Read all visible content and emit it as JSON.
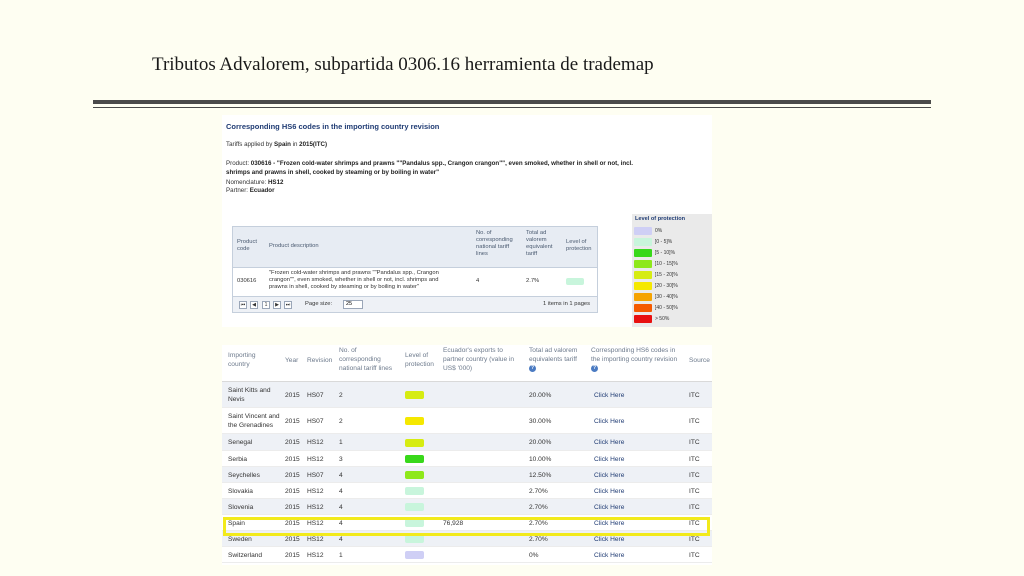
{
  "slide": {
    "title": "Tributos Advalorem, subpartida 0306.16 herramienta de trademap"
  },
  "top_panel": {
    "heading": "Corresponding HS6 codes in the importing country revision",
    "tariffs_prefix": "Tariffs applied by ",
    "tariffs_country": "Spain",
    "tariffs_in": " in ",
    "tariffs_year": "2015(ITC)",
    "product_prefix": "Product: ",
    "product_line1": "030616 - \"Frozen cold-water shrimps and prawns \"\"Pandalus spp., Crangon crangon\"\", even smoked, whether in shell or not, incl.",
    "product_line2": "shrimps and prawns in shell, cooked by steaming or by boiling in water\"",
    "nomenclature_prefix": "Nomenclature: ",
    "nomenclature": "HS12",
    "partner_prefix": "Partner: ",
    "partner": "Ecuador",
    "table": {
      "headers": {
        "code": [
          "Product",
          "code"
        ],
        "description": "Product description",
        "lines": [
          "No. of",
          "corresponding",
          "national tariff",
          "lines"
        ],
        "total": [
          "Total ad",
          "valorem",
          "equivalent",
          "tariff"
        ],
        "level": [
          "Level of",
          "protection"
        ]
      },
      "row": {
        "code": "030616",
        "description": [
          "\"Frozen cold-water shrimps and prawns \"\"Pandalus spp., Crangon",
          "crangon\"\", even smoked, whether in shell or not, incl. shrimps and",
          "prawns in shell, cooked by steaming or by boiling in water\""
        ],
        "lines": "4",
        "total": "2.7%",
        "level_color": "#c8f5dc"
      },
      "footer": {
        "first": "⏮",
        "prev": "◀",
        "page": "1",
        "next": "▶",
        "last": "⏭",
        "page_size_label": "Page size:",
        "page_size": "25",
        "items_info": "1 items in 1 pages"
      }
    }
  },
  "legend": {
    "title": "Level of protection",
    "items": [
      {
        "label": "0%",
        "color": "#cfcff5"
      },
      {
        "label": "]0 - 5]%",
        "color": "#c8f5dc"
      },
      {
        "label": "]5 - 10]%",
        "color": "#38d81a"
      },
      {
        "label": "]10 - 15]%",
        "color": "#8ee81a"
      },
      {
        "label": "]15 - 20]%",
        "color": "#d6ec12"
      },
      {
        "label": "]20 - 30]%",
        "color": "#f5e800"
      },
      {
        "label": "]30 - 40]%",
        "color": "#f5a300"
      },
      {
        "label": "]40 - 50]%",
        "color": "#f55a00"
      },
      {
        "label": "> 50%",
        "color": "#e81010"
      }
    ]
  },
  "bottom_table": {
    "headers": {
      "country": [
        "Importing",
        "country"
      ],
      "year": "Year",
      "revision": "Revision",
      "lines": [
        "No. of",
        "corresponding",
        "national tariff lines"
      ],
      "level": [
        "Level of",
        "protection"
      ],
      "exports": [
        "Ecuador's exports to",
        "partner country (value  in",
        "US$ '000)"
      ],
      "total": [
        "Total ad valorem",
        "equivalents tariff"
      ],
      "hs6": [
        "Corresponding HS6 codes in",
        "the importing country revision"
      ],
      "source": "Source"
    },
    "rows": [
      {
        "country": [
          "Saint Kitts and",
          "Nevis"
        ],
        "year": "2015",
        "revision": "HS07",
        "lines": "2",
        "level_color": "#d6ec12",
        "exports": "",
        "total": "20.00%",
        "link": "Click Here",
        "source": "ITC"
      },
      {
        "country": [
          "Saint Vincent and",
          "the Grenadines"
        ],
        "year": "2015",
        "revision": "HS07",
        "lines": "2",
        "level_color": "#f5e800",
        "exports": "",
        "total": "30.00%",
        "link": "Click Here",
        "source": "ITC"
      },
      {
        "country": [
          "Senegal"
        ],
        "year": "2015",
        "revision": "HS12",
        "lines": "1",
        "level_color": "#d6ec12",
        "exports": "",
        "total": "20.00%",
        "link": "Click Here",
        "source": "ITC"
      },
      {
        "country": [
          "Serbia"
        ],
        "year": "2015",
        "revision": "HS12",
        "lines": "3",
        "level_color": "#38d81a",
        "exports": "",
        "total": "10.00%",
        "link": "Click Here",
        "source": "ITC"
      },
      {
        "country": [
          "Seychelles"
        ],
        "year": "2015",
        "revision": "HS07",
        "lines": "4",
        "level_color": "#8ee81a",
        "exports": "",
        "total": "12.50%",
        "link": "Click Here",
        "source": "ITC"
      },
      {
        "country": [
          "Slovakia"
        ],
        "year": "2015",
        "revision": "HS12",
        "lines": "4",
        "level_color": "#c8f5dc",
        "exports": "",
        "total": "2.70%",
        "link": "Click Here",
        "source": "ITC"
      },
      {
        "country": [
          "Slovenia"
        ],
        "year": "2015",
        "revision": "HS12",
        "lines": "4",
        "level_color": "#c8f5dc",
        "exports": "",
        "total": "2.70%",
        "link": "Click Here",
        "source": "ITC"
      },
      {
        "country": [
          "Spain"
        ],
        "year": "2015",
        "revision": "HS12",
        "lines": "4",
        "level_color": "#c8f5dc",
        "exports": "76,928",
        "total": "2.70%",
        "link": "Click Here",
        "source": "ITC"
      },
      {
        "country": [
          "Sweden"
        ],
        "year": "2015",
        "revision": "HS12",
        "lines": "4",
        "level_color": "#c8f5dc",
        "exports": "",
        "total": "2.70%",
        "link": "Click Here",
        "source": "ITC"
      },
      {
        "country": [
          "Switzerland"
        ],
        "year": "2015",
        "revision": "HS12",
        "lines": "1",
        "level_color": "#cfcff5",
        "exports": "",
        "total": "0%",
        "link": "Click Here",
        "source": "ITC"
      }
    ],
    "highlight_color": "#f2ea1b"
  }
}
